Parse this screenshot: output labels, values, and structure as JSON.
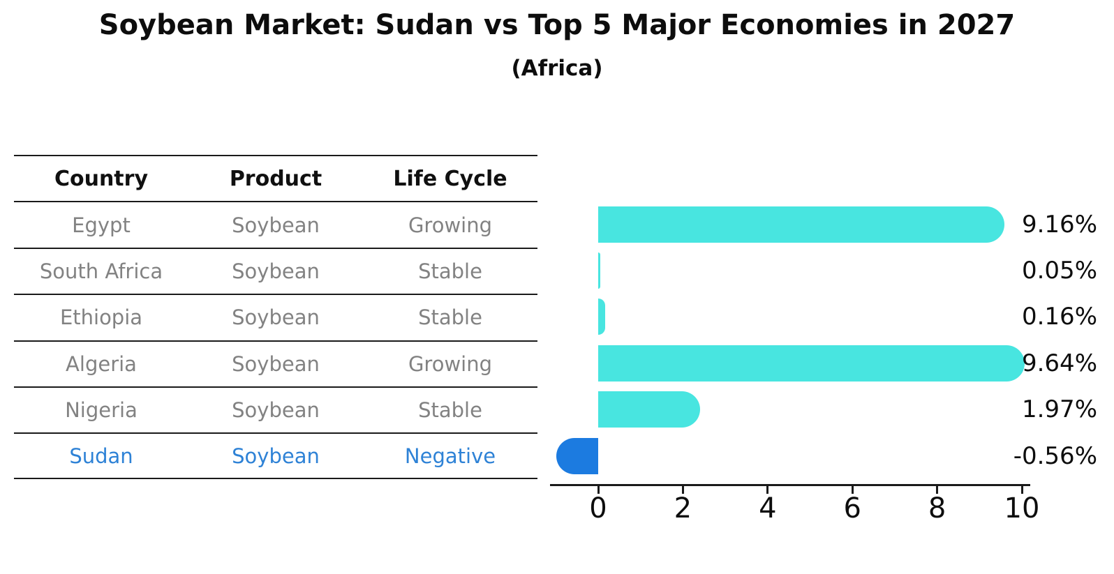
{
  "title": "Soybean Market: Sudan vs Top 5 Major Economies in 2027",
  "subtitle": "(Africa)",
  "table": {
    "headers": [
      "Country",
      "Product",
      "Life Cycle"
    ],
    "rows": [
      {
        "country": "Egypt",
        "product": "Soybean",
        "life_cycle": "Growing",
        "highlighted": false
      },
      {
        "country": "South Africa",
        "product": "Soybean",
        "life_cycle": "Stable",
        "highlighted": false
      },
      {
        "country": "Ethiopia",
        "product": "Soybean",
        "life_cycle": "Stable",
        "highlighted": false
      },
      {
        "country": "Algeria",
        "product": "Soybean",
        "life_cycle": "Growing",
        "highlighted": false
      },
      {
        "country": "Nigeria",
        "product": "Soybean",
        "life_cycle": "Stable",
        "highlighted": false
      },
      {
        "country": "Sudan",
        "product": "Soybean",
        "life_cycle": "Negative",
        "highlighted": true
      }
    ]
  },
  "chart_data": {
    "type": "bar",
    "orientation": "horizontal",
    "title": "",
    "xlabel": "",
    "ylabel": "",
    "categories": [
      "Egypt",
      "South Africa",
      "Ethiopia",
      "Algeria",
      "Nigeria",
      "Sudan"
    ],
    "values": [
      9.16,
      0.05,
      0.16,
      9.64,
      1.97,
      -0.56
    ],
    "value_labels": [
      "9.16%",
      "0.05%",
      "0.16%",
      "9.64%",
      "1.97%",
      "-0.56%"
    ],
    "x_ticks": [
      0,
      2,
      4,
      6,
      8,
      10
    ],
    "x_tick_labels": [
      "0",
      "2",
      "4",
      "6",
      "8",
      "10"
    ],
    "xlim": [
      -1.15,
      10.2
    ],
    "grid": false,
    "legend": false,
    "highlight_index": 5
  },
  "colors": {
    "bar_cyan": "#48e5e0",
    "bar_blue": "#1c7be0",
    "highlight_text": "#2e82d6",
    "table_text": "#828282",
    "ink": "#0d0d0d"
  }
}
